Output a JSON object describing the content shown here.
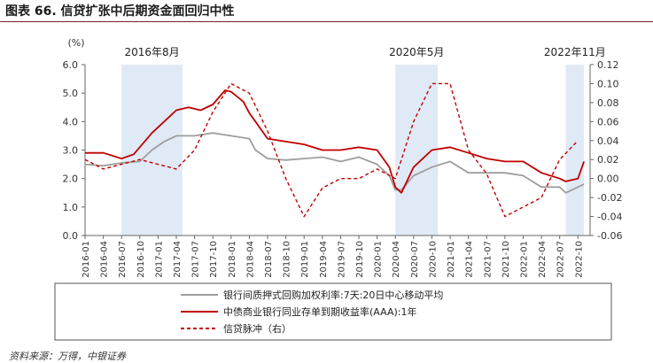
{
  "figure_title": "图表 66. 信贷扩张中后期资金面回归中性",
  "source_note": "资料来源：万得，中银证券",
  "chart_data": {
    "type": "line",
    "title": "",
    "y_left": {
      "unit_label": "(%)",
      "ylim": [
        0,
        6
      ],
      "ticks": [
        "0.0",
        "1.0",
        "2.0",
        "3.0",
        "4.0",
        "5.0",
        "6.0"
      ]
    },
    "y_right": {
      "ylim": [
        -0.06,
        0.12
      ],
      "ticks": [
        "-0.06",
        "-0.04",
        "-0.02",
        "0.00",
        "0.02",
        "0.04",
        "0.06",
        "0.08",
        "0.10",
        "0.12"
      ]
    },
    "x_ticks": [
      "2016-01",
      "2016-04",
      "2016-07",
      "2016-10",
      "2017-01",
      "2017-04",
      "2017-07",
      "2017-10",
      "2018-01",
      "2018-04",
      "2018-07",
      "2018-10",
      "2019-01",
      "2019-04",
      "2019-07",
      "2019-10",
      "2020-01",
      "2020-04",
      "2020-07",
      "2020-10",
      "2021-01",
      "2021-04",
      "2021-07",
      "2021-10",
      "2022-01",
      "2022-04",
      "2022-07",
      "2022-10"
    ],
    "annotations": [
      {
        "label": "2016年8月",
        "shade_from": "2016-07",
        "shade_to": "2017-05"
      },
      {
        "label": "2020年5月",
        "shade_from": "2020-04",
        "shade_to": "2020-11"
      },
      {
        "label": "2022年11月",
        "shade_from": "2022-08",
        "shade_to": "2022-11"
      }
    ],
    "grid": false,
    "legend_position": "bottom",
    "series": [
      {
        "name": "银行间质押式回购加权利率:7天:20日中心移动平均",
        "axis": "left",
        "color": "#9e9e9e",
        "style": "solid",
        "points": [
          [
            "2016-01",
            2.5
          ],
          [
            "2016-04",
            2.45
          ],
          [
            "2016-07",
            2.55
          ],
          [
            "2016-10",
            2.6
          ],
          [
            "2016-12",
            3.0
          ],
          [
            "2017-02",
            3.3
          ],
          [
            "2017-04",
            3.5
          ],
          [
            "2017-07",
            3.5
          ],
          [
            "2017-10",
            3.6
          ],
          [
            "2018-01",
            3.5
          ],
          [
            "2018-04",
            3.4
          ],
          [
            "2018-05",
            3.0
          ],
          [
            "2018-07",
            2.7
          ],
          [
            "2018-10",
            2.65
          ],
          [
            "2019-01",
            2.7
          ],
          [
            "2019-04",
            2.75
          ],
          [
            "2019-07",
            2.6
          ],
          [
            "2019-10",
            2.75
          ],
          [
            "2020-01",
            2.5
          ],
          [
            "2020-03",
            2.1
          ],
          [
            "2020-04",
            1.6
          ],
          [
            "2020-05",
            1.6
          ],
          [
            "2020-07",
            2.1
          ],
          [
            "2020-10",
            2.4
          ],
          [
            "2021-01",
            2.6
          ],
          [
            "2021-04",
            2.2
          ],
          [
            "2021-07",
            2.2
          ],
          [
            "2021-10",
            2.2
          ],
          [
            "2022-01",
            2.1
          ],
          [
            "2022-04",
            1.7
          ],
          [
            "2022-07",
            1.7
          ],
          [
            "2022-08",
            1.5
          ],
          [
            "2022-11",
            1.8
          ]
        ]
      },
      {
        "name": "中债商业银行同业存单到期收益率(AAA):1年",
        "axis": "left",
        "color": "#c00000",
        "style": "solid",
        "points": [
          [
            "2016-01",
            2.9
          ],
          [
            "2016-04",
            2.9
          ],
          [
            "2016-07",
            2.7
          ],
          [
            "2016-09",
            2.85
          ],
          [
            "2016-12",
            3.6
          ],
          [
            "2017-02",
            4.0
          ],
          [
            "2017-04",
            4.4
          ],
          [
            "2017-06",
            4.5
          ],
          [
            "2017-08",
            4.4
          ],
          [
            "2017-10",
            4.6
          ],
          [
            "2017-12",
            5.1
          ],
          [
            "2018-01",
            5.05
          ],
          [
            "2018-03",
            4.7
          ],
          [
            "2018-04",
            4.3
          ],
          [
            "2018-05",
            4.0
          ],
          [
            "2018-07",
            3.4
          ],
          [
            "2018-10",
            3.3
          ],
          [
            "2019-01",
            3.2
          ],
          [
            "2019-04",
            3.0
          ],
          [
            "2019-07",
            3.0
          ],
          [
            "2019-10",
            3.1
          ],
          [
            "2020-01",
            3.0
          ],
          [
            "2020-03",
            2.4
          ],
          [
            "2020-04",
            1.7
          ],
          [
            "2020-05",
            1.5
          ],
          [
            "2020-07",
            2.4
          ],
          [
            "2020-10",
            3.0
          ],
          [
            "2021-01",
            3.1
          ],
          [
            "2021-04",
            2.9
          ],
          [
            "2021-07",
            2.7
          ],
          [
            "2021-10",
            2.6
          ],
          [
            "2022-01",
            2.6
          ],
          [
            "2022-04",
            2.2
          ],
          [
            "2022-07",
            2.0
          ],
          [
            "2022-08",
            1.9
          ],
          [
            "2022-10",
            2.0
          ],
          [
            "2022-11",
            2.6
          ]
        ]
      },
      {
        "name": "信贷脉冲（右）",
        "axis": "right",
        "color": "#c00000",
        "style": "dashed",
        "points": [
          [
            "2016-01",
            0.02
          ],
          [
            "2016-04",
            0.01
          ],
          [
            "2016-07",
            0.015
          ],
          [
            "2016-10",
            0.02
          ],
          [
            "2017-01",
            0.015
          ],
          [
            "2017-04",
            0.01
          ],
          [
            "2017-07",
            0.03
          ],
          [
            "2017-10",
            0.07
          ],
          [
            "2018-01",
            0.1
          ],
          [
            "2018-04",
            0.09
          ],
          [
            "2018-07",
            0.05
          ],
          [
            "2018-10",
            0.0
          ],
          [
            "2019-01",
            -0.04
          ],
          [
            "2019-04",
            -0.01
          ],
          [
            "2019-07",
            0.0
          ],
          [
            "2019-10",
            0.0
          ],
          [
            "2020-01",
            0.01
          ],
          [
            "2020-04",
            0.0
          ],
          [
            "2020-07",
            0.06
          ],
          [
            "2020-10",
            0.1
          ],
          [
            "2021-01",
            0.1
          ],
          [
            "2021-04",
            0.03
          ],
          [
            "2021-07",
            0.005
          ],
          [
            "2021-10",
            -0.04
          ],
          [
            "2022-01",
            -0.03
          ],
          [
            "2022-04",
            -0.02
          ],
          [
            "2022-07",
            0.02
          ],
          [
            "2022-10",
            0.04
          ]
        ]
      }
    ]
  }
}
